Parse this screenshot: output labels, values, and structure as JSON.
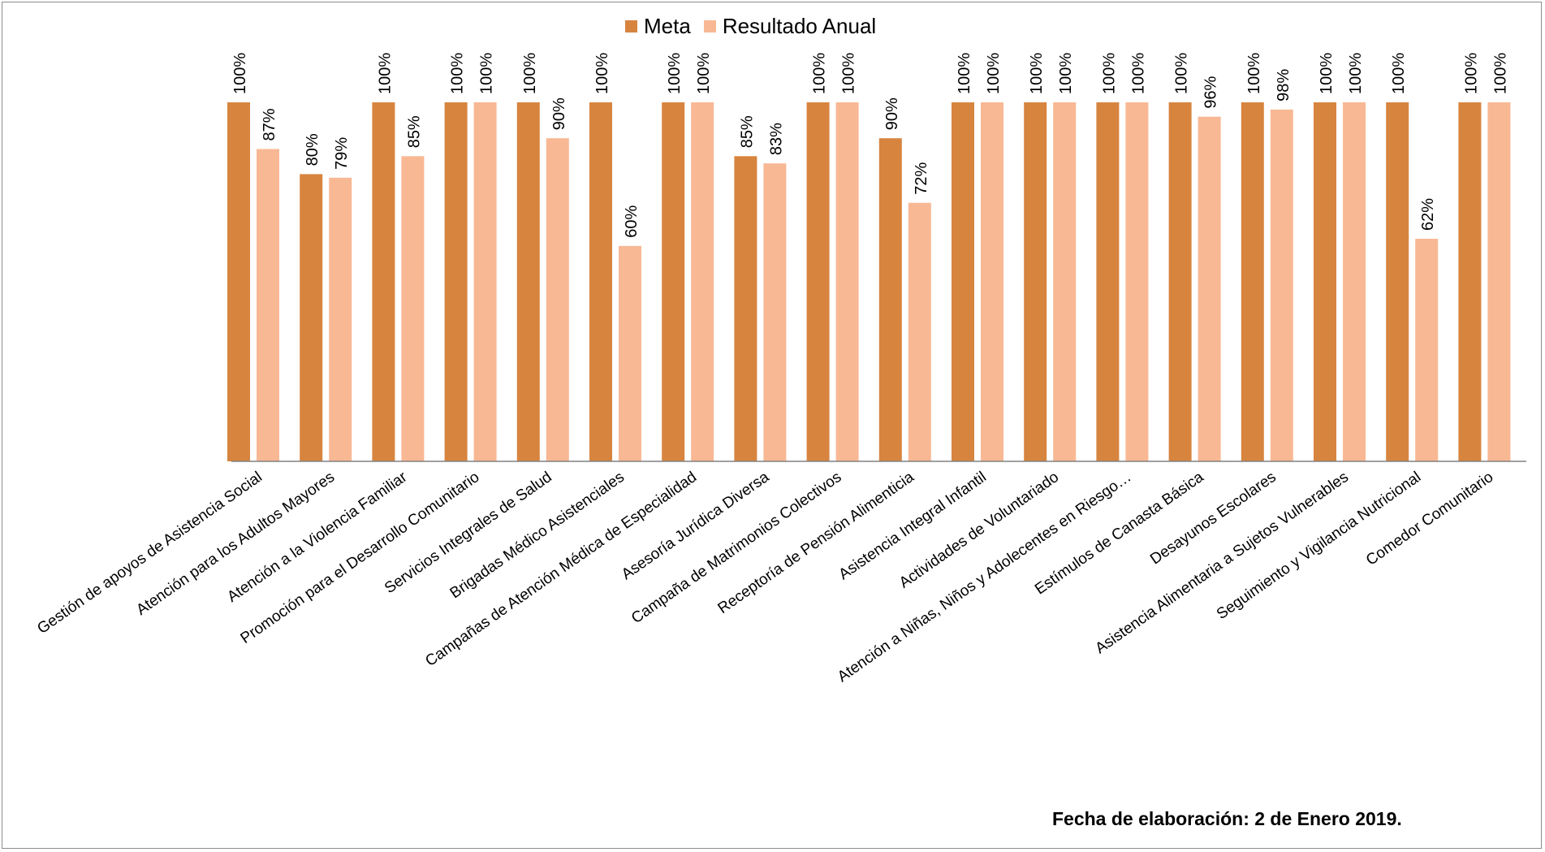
{
  "colors": {
    "meta": "#d7843f",
    "resultado": "#f8b894",
    "axis": "#808080",
    "text": "#000000"
  },
  "legend": {
    "meta_label": "Meta",
    "resultado_label": "Resultado Anual"
  },
  "footnote": "Fecha de elaboración: 2 de Enero 2019.",
  "chart_data": {
    "type": "bar",
    "title": "",
    "xlabel": "",
    "ylabel": "",
    "ylim": [
      0,
      100
    ],
    "grid": false,
    "legend_position": "top",
    "categories": [
      "Gestión de apoyos de Asistencia Social",
      "Atención para los Adultos Mayores",
      "Atención a la Violencia Familiar",
      "Promoción para el Desarrollo Comunitario",
      "Servicios Integrales de Salud",
      "Brigadas Médico Asistenciales",
      "Campañas de Atención Médica de Especialidad",
      "Asesoría Jurídica Diversa",
      "Campaña de Matrimonios Colectivos",
      "Receptoría de Pensión Alimenticia",
      "Asistencia Integral Infantil",
      "Actividades de Voluntariado",
      "Atención a Niñas, Niños y Adolecentes en Riesgo…",
      "Estímulos de Canasta Básica",
      "Desayunos Escolares",
      "Asistencia Alimentaria a Sujetos Vulnerables",
      "Seguimiento y Vigilancia Nutricional",
      "Comedor Comunitario"
    ],
    "series": [
      {
        "name": "Meta",
        "values": [
          100,
          80,
          100,
          100,
          100,
          100,
          100,
          85,
          100,
          90,
          100,
          100,
          100,
          100,
          100,
          100,
          100,
          100
        ],
        "labels": [
          "100%",
          "80%",
          "100%",
          "100%",
          "100%",
          "100%",
          "100%",
          "85%",
          "100%",
          "90%",
          "100%",
          "100%",
          "100%",
          "100%",
          "100%",
          "100%",
          "100%",
          "100%"
        ]
      },
      {
        "name": "Resultado Anual",
        "values": [
          87,
          79,
          85,
          100,
          90,
          60,
          100,
          83,
          100,
          72,
          100,
          100,
          100,
          96,
          98,
          100,
          62,
          100
        ],
        "labels": [
          "87%",
          "79%",
          "85%",
          "100%",
          "90%",
          "60%",
          "100%",
          "83%",
          "100%",
          "72%",
          "100%",
          "100%",
          "100%",
          "96%",
          "98%",
          "100%",
          "62%",
          "100%"
        ]
      }
    ]
  }
}
